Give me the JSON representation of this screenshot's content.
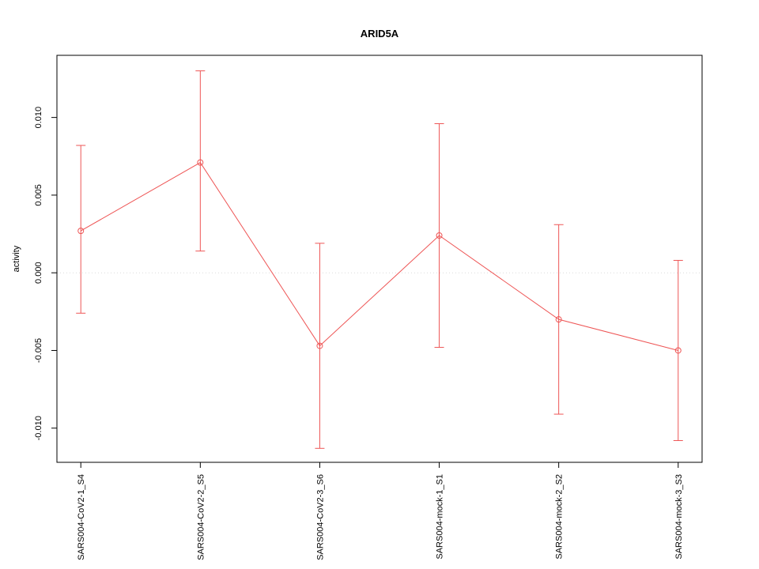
{
  "chart_data": {
    "type": "line",
    "title": "ARID5A",
    "xlabel": "",
    "ylabel": "activity",
    "categories": [
      "SARS004-CoV2-1_S4",
      "SARS004-CoV2-2_S5",
      "SARS004-CoV2-3_S6",
      "SARS004-mock-1_S1",
      "SARS004-mock-2_S2",
      "SARS004-mock-3_S3"
    ],
    "series": [
      {
        "name": "activity",
        "values": [
          0.0027,
          0.0071,
          -0.0047,
          0.0024,
          -0.003,
          -0.005
        ],
        "error_high": [
          0.0082,
          0.013,
          0.0019,
          0.0096,
          0.0031,
          0.0008
        ],
        "error_low": [
          -0.0026,
          0.0014,
          -0.0113,
          -0.0048,
          -0.0091,
          -0.0108
        ]
      }
    ],
    "yticks": [
      -0.01,
      -0.005,
      0.0,
      0.005,
      0.01
    ],
    "ytick_labels": [
      "-0.010",
      "-0.005",
      "0.000",
      "0.005",
      "0.010"
    ],
    "ylim": [
      -0.0122,
      0.014
    ],
    "legend": null,
    "grid": "dotted horizontal reference line at y=0 only",
    "marker": "open-circle",
    "colors": {
      "series": "#ee5555",
      "zero_line": "#dcdcdc",
      "axis": "#000000",
      "background": "#ffffff"
    }
  }
}
